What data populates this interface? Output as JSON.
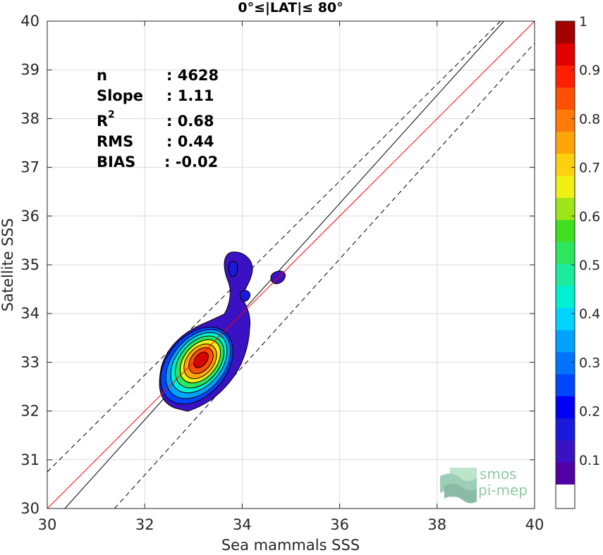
{
  "chart_data": {
    "type": "contour",
    "title": "0°≤|LAT|≤ 80°",
    "xlabel": "Sea mammals SSS",
    "ylabel": "Satellite SSS",
    "xlim": [
      30,
      40
    ],
    "ylim": [
      30,
      40
    ],
    "xticks": [
      "30",
      "32",
      "34",
      "36",
      "38",
      "40"
    ],
    "yticks": [
      "30",
      "31",
      "32",
      "33",
      "34",
      "35",
      "36",
      "37",
      "38",
      "39",
      "40"
    ],
    "grid": true,
    "stats": [
      {
        "label": "n",
        "value": ": 4628"
      },
      {
        "label": "Slope",
        "value": ": 1.11"
      },
      {
        "label": "R",
        "sup": "2",
        "value": ": 0.68"
      },
      {
        "label": "RMS",
        "value": ": 0.44"
      },
      {
        "label": "BIAS",
        "value": ": -0.02"
      }
    ],
    "lines": {
      "identity": {
        "color": "#ff0000",
        "points": [
          [
            30,
            30
          ],
          [
            40,
            40
          ]
        ]
      },
      "fit": {
        "color": "#000000",
        "points": [
          [
            30.36,
            30
          ],
          [
            39.37,
            40
          ]
        ]
      },
      "upper_bound": {
        "color": "#000000",
        "dash": true,
        "points": [
          [
            30,
            30.75
          ],
          [
            39.3,
            40
          ]
        ]
      },
      "lower_bound": {
        "color": "#000000",
        "dash": true,
        "points": [
          [
            31.38,
            30
          ],
          [
            40,
            39.55
          ]
        ]
      }
    },
    "density_peak": {
      "x": 33.1,
      "y": 33.05
    },
    "secondary_blobs": [
      {
        "x": 34.75,
        "y": 34.72
      },
      {
        "x": 33.8,
        "y": 35.0
      },
      {
        "x": 34.05,
        "y": 34.38
      }
    ],
    "colorbar": {
      "min": 0,
      "max": 1,
      "ticks": [
        "0.1",
        "0.2",
        "0.3",
        "0.4",
        "0.5",
        "0.6",
        "0.7",
        "0.8",
        "0.9",
        "1"
      ],
      "colors": [
        "#5200a3",
        "#3a12c4",
        "#1a1add",
        "#0000f5",
        "#0046ff",
        "#0074ff",
        "#00a2ff",
        "#00d4ff",
        "#00f0d2",
        "#1aeb9c",
        "#2ce65e",
        "#3fe022",
        "#9ee619",
        "#f0f014",
        "#ffd010",
        "#ffa50a",
        "#ff7a08",
        "#ff5005",
        "#ff2003",
        "#e00000",
        "#a30000"
      ]
    },
    "logo": {
      "line1": "smos",
      "line2": "pi-mep"
    }
  }
}
